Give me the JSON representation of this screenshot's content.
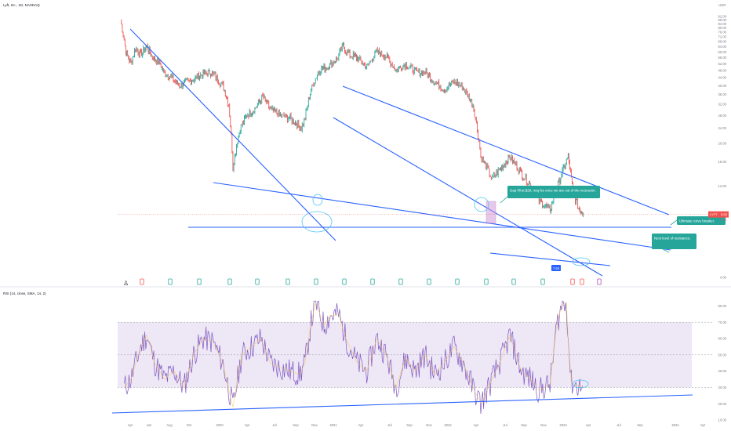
{
  "header": {
    "symbol_line": "Lyft, Inc., 1D, NASDAQ",
    "currency": "USD"
  },
  "rsi_header": "RSI (14, close, SMA, 14, 2)",
  "price_badge": {
    "ticker": "LYFT",
    "value": "8.52"
  },
  "low_badge": "7.64",
  "annotations": [
    {
      "id": "gap",
      "text": "Gap fill at $29, may be once we are out of the recession."
    },
    {
      "id": "ultimate",
      "text": "Ultimate curve breaker."
    },
    {
      "id": "next",
      "text": "Next level of resistance."
    }
  ],
  "colors": {
    "trendline": "#2962ff",
    "price_up": "#26a69a",
    "price_down": "#ef5350",
    "rsi_line": "#7e57c2",
    "rsi_ma": "#f7c948",
    "annotation_bg": "#26a69a",
    "rsi_band": "#ede7f6",
    "gap_box": "#ce93d8",
    "circle": "#4fc3f7"
  },
  "chart_data": [
    {
      "type": "line",
      "title": "Lyft, Inc., 1D, NASDAQ",
      "ylabel": "USD",
      "log_scale": true,
      "ylim": [
        4,
        98
      ],
      "y_ticks": [
        4.0,
        8.0,
        12.0,
        16.0,
        20.0,
        24.0,
        28.0,
        32.0,
        36.0,
        40.0,
        44.0,
        48.0,
        52.0,
        56.0,
        60.0,
        64.0,
        68.0,
        72.0,
        76.0,
        80.0,
        84.0,
        88.0,
        92.0
      ],
      "x_ticks": [
        "Apr",
        "Jun",
        "Aug",
        "Oct",
        "2020",
        "Apr",
        "Jul",
        "Sep",
        "Nov",
        "2021",
        "Apr",
        "Jul",
        "Sep",
        "Nov",
        "2022",
        "Apr",
        "Jul",
        "Sep",
        "Nov",
        "2023",
        "Apr",
        "Jul",
        "Sep",
        "2024",
        "Apr"
      ],
      "series": [
        {
          "values": [
            [
              "2019-03-29",
              88
            ],
            [
              "2019-04-15",
              60
            ],
            [
              "2019-05-01",
              52
            ],
            [
              "2019-05-15",
              63
            ],
            [
              "2019-06-01",
              58
            ],
            [
              "2019-06-20",
              64
            ],
            [
              "2019-07-05",
              57
            ],
            [
              "2019-08-01",
              52
            ],
            [
              "2019-08-15",
              46
            ],
            [
              "2019-09-01",
              45
            ],
            [
              "2019-10-01",
              40
            ],
            [
              "2019-11-01",
              42
            ],
            [
              "2019-12-15",
              46
            ],
            [
              "2020-01-10",
              47
            ],
            [
              "2020-02-15",
              40
            ],
            [
              "2020-03-05",
              32
            ],
            [
              "2020-03-18",
              15
            ],
            [
              "2020-04-10",
              24
            ],
            [
              "2020-05-01",
              28
            ],
            [
              "2020-06-01",
              31
            ],
            [
              "2020-06-20",
              35
            ],
            [
              "2020-07-15",
              30
            ],
            [
              "2020-08-15",
              28
            ],
            [
              "2020-09-15",
              27
            ],
            [
              "2020-10-20",
              24
            ],
            [
              "2020-11-01",
              27
            ],
            [
              "2020-11-20",
              38
            ],
            [
              "2020-12-15",
              48
            ],
            [
              "2021-01-10",
              50
            ],
            [
              "2021-02-10",
              55
            ],
            [
              "2021-03-01",
              64
            ],
            [
              "2021-03-20",
              58
            ],
            [
              "2021-04-15",
              56
            ],
            [
              "2021-05-15",
              50
            ],
            [
              "2021-06-15",
              60
            ],
            [
              "2021-07-15",
              57
            ],
            [
              "2021-08-15",
              48
            ],
            [
              "2021-09-15",
              52
            ],
            [
              "2021-10-15",
              47
            ],
            [
              "2021-11-15",
              47
            ],
            [
              "2021-12-15",
              42
            ],
            [
              "2022-01-15",
              38
            ],
            [
              "2022-02-15",
              42
            ],
            [
              "2022-03-15",
              39
            ],
            [
              "2022-04-15",
              32
            ],
            [
              "2022-05-10",
              17
            ],
            [
              "2022-06-15",
              13
            ],
            [
              "2022-07-15",
              15
            ],
            [
              "2022-08-10",
              17
            ],
            [
              "2022-09-15",
              14
            ],
            [
              "2022-10-15",
              12
            ],
            [
              "2022-11-10",
              10
            ],
            [
              "2022-12-15",
              9
            ],
            [
              "2023-01-15",
              13
            ],
            [
              "2023-02-10",
              17
            ],
            [
              "2023-02-25",
              11
            ],
            [
              "2023-03-15",
              9.2
            ],
            [
              "2023-03-30",
              8.52
            ]
          ]
        }
      ]
    },
    {
      "type": "line",
      "title": "RSI (14, close, SMA, 14, 2)",
      "ylim": [
        10,
        85
      ],
      "y_ticks": [
        10.0,
        20.0,
        30.0,
        40.0,
        50.0,
        60.0,
        70.0,
        80.0
      ],
      "bands": [
        30,
        50,
        70
      ],
      "series": [
        {
          "values": [
            [
              "2019-04-10",
              30
            ],
            [
              "2019-05-01",
              35
            ],
            [
              "2019-06-01",
              55
            ],
            [
              "2019-06-20",
              62
            ],
            [
              "2019-07-15",
              45
            ],
            [
              "2019-08-15",
              35
            ],
            [
              "2019-09-15",
              40
            ],
            [
              "2019-10-15",
              30
            ],
            [
              "2019-11-15",
              50
            ],
            [
              "2019-12-15",
              60
            ],
            [
              "2020-01-15",
              58
            ],
            [
              "2020-02-15",
              45
            ],
            [
              "2020-03-18",
              18
            ],
            [
              "2020-04-15",
              50
            ],
            [
              "2020-05-15",
              55
            ],
            [
              "2020-06-15",
              60
            ],
            [
              "2020-07-15",
              45
            ],
            [
              "2020-08-15",
              42
            ],
            [
              "2020-09-15",
              40
            ],
            [
              "2020-10-15",
              38
            ],
            [
              "2020-11-01",
              45
            ],
            [
              "2020-11-20",
              70
            ],
            [
              "2020-12-05",
              82
            ],
            [
              "2020-12-31",
              68
            ],
            [
              "2021-01-20",
              74
            ],
            [
              "2021-02-15",
              75
            ],
            [
              "2021-03-10",
              60
            ],
            [
              "2021-04-15",
              45
            ],
            [
              "2021-05-15",
              40
            ],
            [
              "2021-06-15",
              60
            ],
            [
              "2021-07-15",
              50
            ],
            [
              "2021-08-15",
              30
            ],
            [
              "2021-09-15",
              48
            ],
            [
              "2021-10-15",
              40
            ],
            [
              "2021-11-15",
              50
            ],
            [
              "2021-12-15",
              38
            ],
            [
              "2022-01-15",
              45
            ],
            [
              "2022-02-15",
              55
            ],
            [
              "2022-03-15",
              45
            ],
            [
              "2022-04-15",
              30
            ],
            [
              "2022-05-10",
              20
            ],
            [
              "2022-06-15",
              35
            ],
            [
              "2022-07-15",
              48
            ],
            [
              "2022-08-10",
              62
            ],
            [
              "2022-09-15",
              40
            ],
            [
              "2022-10-15",
              35
            ],
            [
              "2022-11-10",
              28
            ],
            [
              "2022-12-15",
              32
            ],
            [
              "2023-01-05",
              68
            ],
            [
              "2023-01-20",
              80
            ],
            [
              "2023-02-05",
              82
            ],
            [
              "2023-02-10",
              60
            ],
            [
              "2023-02-20",
              33
            ],
            [
              "2023-03-10",
              31
            ],
            [
              "2023-03-30",
              30
            ]
          ]
        }
      ]
    }
  ]
}
